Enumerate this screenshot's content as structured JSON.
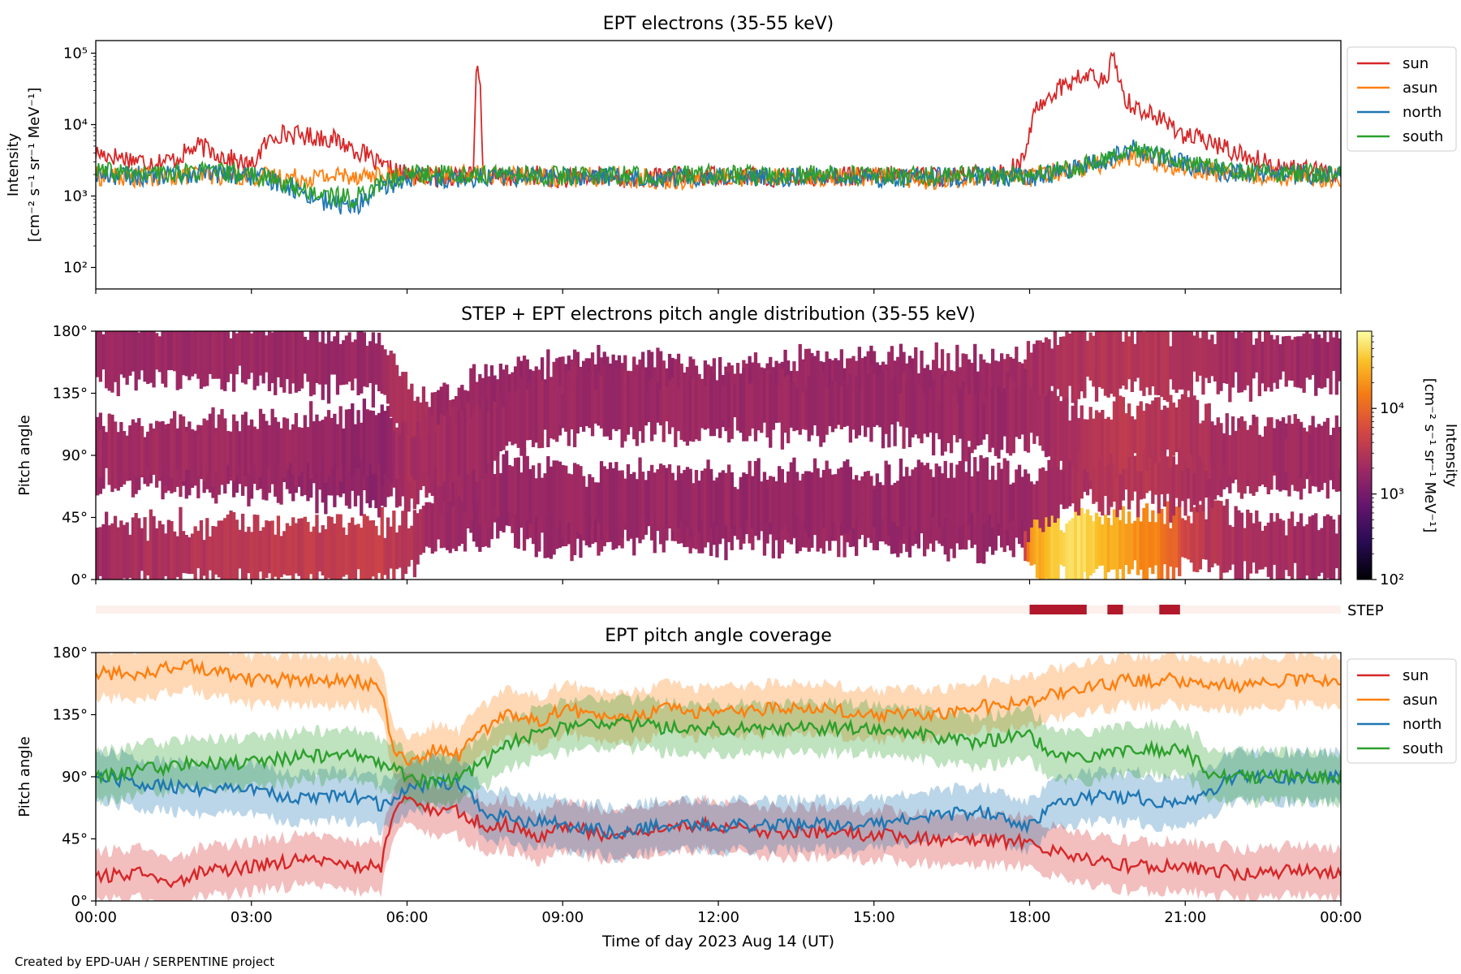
{
  "figure": {
    "credit": "Created by EPD-UAH / SERPENTINE project",
    "xlabel": "Time of day 2023 Aug 14 (UT)",
    "x_tick_labels": [
      "00:00",
      "03:00",
      "06:00",
      "09:00",
      "12:00",
      "15:00",
      "18:00",
      "21:00",
      "00:00"
    ]
  },
  "chart_data": [
    {
      "type": "line",
      "title": "EPT electrons (35-55 keV)",
      "ylabel_line1": "Intensity",
      "ylabel_line2": "[cm⁻² s⁻¹ sr⁻¹ MeV⁻¹]",
      "yscale": "log",
      "ylim": [
        50,
        150000
      ],
      "y_ticks": [
        {
          "value": 100,
          "label": "10²"
        },
        {
          "value": 1000,
          "label": "10³"
        },
        {
          "value": 10000,
          "label": "10⁴"
        },
        {
          "value": 100000,
          "label": "10⁵"
        }
      ],
      "xlim_hours": [
        0,
        24
      ],
      "legend_placement": "outside-top-right",
      "series": [
        {
          "name": "sun",
          "color": "#d62728",
          "x": [
            0,
            0.5,
            1,
            1.5,
            2,
            2.5,
            3,
            3.5,
            4,
            4.5,
            5,
            5.5,
            6,
            6.5,
            7,
            7.3,
            7.35,
            7.45,
            7.5,
            8,
            8.5,
            9,
            9.5,
            10,
            10.5,
            11,
            11.5,
            12,
            12.5,
            13,
            13.5,
            14,
            14.5,
            15,
            15.5,
            16,
            16.5,
            17,
            17.5,
            17.9,
            18,
            18.2,
            18.5,
            18.8,
            19,
            19.2,
            19.5,
            19.6,
            19.8,
            20,
            20.5,
            21,
            21.5,
            22,
            22.5,
            23,
            23.5,
            24
          ],
          "y": [
            4000,
            3500,
            3000,
            3200,
            5000,
            3500,
            2500,
            7500,
            7000,
            6500,
            4500,
            2500,
            2000,
            1800,
            2000,
            1900,
            70000,
            2000,
            1900,
            1800,
            2000,
            1700,
            1900,
            1800,
            1700,
            1900,
            1800,
            2000,
            1900,
            1800,
            1900,
            1800,
            1900,
            1800,
            2000,
            1900,
            1800,
            2000,
            2200,
            3000,
            8000,
            20000,
            30000,
            40000,
            45000,
            50000,
            35000,
            90000,
            25000,
            18000,
            12000,
            7000,
            5500,
            4000,
            3000,
            2500,
            2200,
            2000
          ]
        },
        {
          "name": "asun",
          "color": "#ff7f0e",
          "x": [
            0,
            1,
            2,
            3,
            4,
            5,
            6,
            7,
            8,
            9,
            10,
            11,
            12,
            13,
            14,
            15,
            16,
            17,
            18,
            18.5,
            19,
            19.5,
            20,
            20.5,
            21,
            21.5,
            22,
            23,
            24
          ],
          "y": [
            1900,
            1800,
            2000,
            1900,
            1800,
            2000,
            1800,
            2000,
            1900,
            1800,
            1900,
            1700,
            1800,
            1900,
            1800,
            1900,
            1700,
            1800,
            1800,
            2200,
            2500,
            3000,
            3500,
            3000,
            2500,
            2200,
            2000,
            1900,
            1800
          ]
        },
        {
          "name": "north",
          "color": "#1f77b4",
          "x": [
            0,
            1,
            2,
            3,
            3.5,
            4,
            4.5,
            5,
            5.5,
            6,
            7,
            8,
            9,
            10,
            11,
            12,
            13,
            14,
            15,
            16,
            17,
            18,
            18.5,
            19,
            19.5,
            20,
            20.5,
            21,
            21.5,
            22,
            23,
            24
          ],
          "y": [
            2000,
            1900,
            2100,
            1900,
            1600,
            1100,
            800,
            700,
            1200,
            1800,
            1800,
            1900,
            1800,
            1900,
            1800,
            1900,
            1800,
            1900,
            1800,
            1800,
            1900,
            1800,
            2100,
            2500,
            3200,
            4500,
            3500,
            2800,
            2300,
            2100,
            2000,
            1900
          ]
        },
        {
          "name": "south",
          "color": "#2ca02c",
          "x": [
            0,
            1,
            2,
            3,
            3.5,
            4,
            4.5,
            5,
            5.5,
            6,
            7,
            8,
            9,
            10,
            11,
            12,
            13,
            14,
            15,
            16,
            17,
            18,
            18.5,
            19,
            19.5,
            20,
            20.5,
            21,
            21.5,
            22,
            23,
            24
          ],
          "y": [
            2200,
            2000,
            2200,
            2000,
            1600,
            1200,
            1000,
            900,
            1500,
            2000,
            2000,
            2000,
            1900,
            2000,
            1900,
            2000,
            1900,
            2000,
            1900,
            1900,
            2000,
            1900,
            2200,
            2700,
            3500,
            4800,
            3700,
            3000,
            2500,
            2200,
            2100,
            2000
          ]
        }
      ]
    },
    {
      "type": "heatmap",
      "title": "STEP + EPT electrons pitch angle distribution (35-55 keV)",
      "ylabel": "Pitch angle",
      "ylim": [
        0,
        180
      ],
      "y_tick_labels": [
        "0°",
        "45°",
        "90°",
        "135°",
        "180°"
      ],
      "xlim_hours": [
        0,
        24
      ],
      "colorbar": {
        "scale": "log",
        "range": [
          100,
          80000
        ],
        "tick_labels": [
          "10²",
          "10³",
          "10⁴"
        ],
        "label_line1": "Intensity",
        "label_line2": "[cm⁻² s⁻¹ sr⁻¹ MeV⁻¹]",
        "colormap": "inferno"
      },
      "sectors": [
        {
          "name": "sun",
          "x": [
            0,
            3,
            5.5,
            6,
            6.5,
            7,
            8,
            9,
            10,
            11,
            12,
            13,
            14,
            15,
            16,
            17,
            17.9,
            18,
            18.5,
            19,
            19.5,
            20,
            20.5,
            21,
            21.5,
            22,
            23,
            24
          ],
          "center": [
            18,
            20,
            20,
            25,
            40,
            50,
            50,
            40,
            48,
            52,
            45,
            47,
            45,
            45,
            44,
            43,
            42,
            30,
            22,
            25,
            25,
            28,
            25,
            30,
            32,
            25,
            22,
            20
          ],
          "intensity": [
            2000,
            3500,
            4000,
            3000,
            2000,
            1800,
            1800,
            1800,
            1800,
            1800,
            1800,
            1800,
            1800,
            1800,
            1800,
            1800,
            1800,
            20000,
            40000,
            50000,
            30000,
            20000,
            15000,
            5000,
            3000,
            2500,
            2200,
            2000
          ]
        },
        {
          "name": "asun",
          "x": [
            0,
            3,
            5.5,
            6,
            6.5,
            7,
            8,
            9,
            10,
            11,
            12,
            13,
            14,
            15,
            16,
            17,
            18,
            19,
            20,
            21,
            22,
            23,
            24
          ],
          "center": [
            165,
            165,
            155,
            120,
            110,
            120,
            135,
            135,
            140,
            140,
            130,
            140,
            140,
            140,
            140,
            140,
            145,
            160,
            160,
            160,
            160,
            160,
            160
          ],
          "intensity": [
            2000,
            1900,
            1800,
            3000,
            2000,
            1900,
            1800,
            1800,
            1800,
            1800,
            1800,
            1800,
            1800,
            1800,
            1800,
            1800,
            2200,
            2800,
            3200,
            2600,
            2200,
            2000,
            1900
          ]
        },
        {
          "name": "north",
          "x": [
            0,
            3,
            5.5,
            6,
            7,
            8,
            9,
            10,
            11,
            12,
            13,
            14,
            15,
            16,
            17,
            18,
            19,
            20,
            21,
            22,
            23,
            24
          ],
          "center": [
            90,
            85,
            75,
            80,
            70,
            65,
            60,
            55,
            58,
            55,
            57,
            58,
            55,
            60,
            65,
            55,
            75,
            75,
            70,
            90,
            90,
            90
          ],
          "intensity": [
            2000,
            1800,
            1500,
            2500,
            1900,
            1800,
            1800,
            1800,
            1800,
            1800,
            1800,
            1800,
            1800,
            1800,
            1800,
            1900,
            2500,
            3200,
            2600,
            2200,
            2000,
            1900
          ]
        },
        {
          "name": "south",
          "x": [
            0,
            3,
            5.5,
            6,
            7,
            8,
            9,
            10,
            11,
            12,
            13,
            14,
            15,
            16,
            17,
            18,
            19,
            20,
            21,
            22,
            23,
            24
          ],
          "center": [
            90,
            95,
            100,
            90,
            95,
            115,
            125,
            130,
            125,
            128,
            125,
            125,
            128,
            120,
            115,
            120,
            100,
            105,
            110,
            90,
            90,
            90
          ],
          "intensity": [
            2200,
            2000,
            1500,
            2500,
            2000,
            1900,
            1900,
            1900,
            1900,
            1900,
            1900,
            1900,
            1900,
            1900,
            1900,
            2000,
            2700,
            3500,
            2800,
            2300,
            2100,
            2000
          ]
        }
      ]
    },
    {
      "type": "bar",
      "label": "STEP",
      "background_color": "#fdf0ec",
      "segment_color": "#b2182b",
      "intervals_hours": [
        [
          18.0,
          19.1
        ],
        [
          19.5,
          19.8
        ],
        [
          20.5,
          20.9
        ]
      ]
    },
    {
      "type": "line",
      "title": "EPT pitch angle coverage",
      "ylabel": "Pitch angle",
      "ylim": [
        0,
        180
      ],
      "y_tick_labels": [
        "0°",
        "45°",
        "90°",
        "135°",
        "180°"
      ],
      "xlim_hours": [
        0,
        24
      ],
      "legend_placement": "outside-top-right",
      "band_halfwidth_deg": 18,
      "series": [
        {
          "name": "sun",
          "color": "#d62728",
          "x": [
            0,
            1,
            1.5,
            2,
            3,
            4,
            5,
            5.5,
            5.7,
            6,
            6.5,
            7,
            7.5,
            8,
            8.5,
            9,
            10,
            11,
            12,
            13,
            14,
            15,
            16,
            17,
            18,
            18.5,
            19,
            20,
            21,
            22,
            23,
            24
          ],
          "y": [
            18,
            20,
            12,
            20,
            25,
            30,
            25,
            25,
            60,
            75,
            65,
            65,
            55,
            55,
            45,
            55,
            45,
            55,
            55,
            50,
            50,
            48,
            45,
            45,
            42,
            35,
            30,
            25,
            25,
            20,
            22,
            20
          ]
        },
        {
          "name": "asun",
          "color": "#ff7f0e",
          "x": [
            0,
            1,
            1.5,
            2,
            3,
            4,
            5,
            5.5,
            5.7,
            6,
            6.5,
            7,
            7.5,
            8,
            8.5,
            9,
            10,
            11,
            12,
            13,
            14,
            15,
            16,
            17,
            18,
            18.5,
            19,
            20,
            21,
            22,
            23,
            24
          ],
          "y": [
            165,
            165,
            170,
            170,
            160,
            160,
            160,
            155,
            115,
            100,
            110,
            105,
            125,
            135,
            130,
            140,
            130,
            140,
            135,
            140,
            140,
            135,
            135,
            140,
            145,
            150,
            155,
            160,
            160,
            155,
            160,
            160
          ]
        },
        {
          "name": "north",
          "color": "#1f77b4",
          "x": [
            0,
            1,
            2,
            3,
            4,
            5,
            5.5,
            6,
            6.5,
            7,
            7.5,
            8,
            9,
            10,
            11,
            12,
            13,
            14,
            15,
            16,
            17,
            18,
            18.5,
            19,
            20,
            21,
            21.5,
            22,
            23,
            24
          ],
          "y": [
            90,
            85,
            80,
            80,
            75,
            75,
            70,
            80,
            85,
            85,
            65,
            60,
            55,
            50,
            55,
            55,
            55,
            55,
            55,
            60,
            65,
            55,
            70,
            75,
            75,
            70,
            80,
            90,
            90,
            90
          ]
        },
        {
          "name": "south",
          "color": "#2ca02c",
          "x": [
            0,
            1,
            2,
            3,
            4,
            5,
            5.5,
            6,
            6.5,
            7,
            7.5,
            8,
            9,
            10,
            11,
            12,
            13,
            14,
            15,
            16,
            17,
            18,
            18.5,
            19,
            20,
            21,
            21.5,
            22,
            23,
            24
          ],
          "y": [
            90,
            95,
            100,
            100,
            105,
            105,
            100,
            90,
            85,
            90,
            100,
            115,
            125,
            130,
            125,
            125,
            125,
            125,
            125,
            120,
            115,
            120,
            105,
            105,
            110,
            110,
            90,
            90,
            90,
            90
          ]
        }
      ]
    }
  ]
}
